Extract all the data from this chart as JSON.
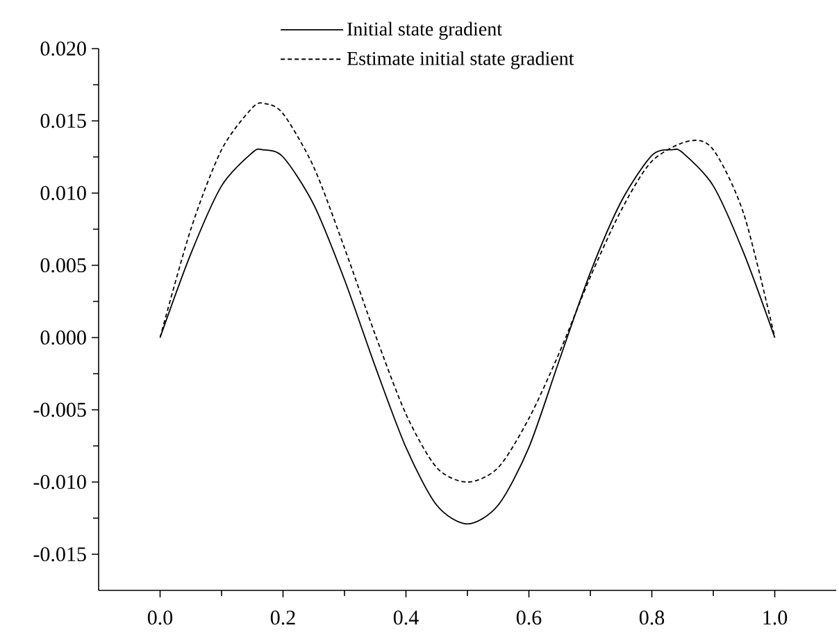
{
  "chart_data": {
    "type": "line",
    "x": [
      0,
      0.05,
      0.1,
      0.15,
      0.167,
      0.2,
      0.25,
      0.3,
      0.35,
      0.4,
      0.45,
      0.5,
      0.55,
      0.6,
      0.65,
      0.7,
      0.75,
      0.8,
      0.833,
      0.85,
      0.9,
      0.95,
      1.0
    ],
    "series": [
      {
        "name": "Initial state gradient",
        "color": "#000000",
        "line_style": "solid",
        "values": [
          0,
          0.0058,
          0.0105,
          0.0128,
          0.013,
          0.0125,
          0.0092,
          0.004,
          -0.002,
          -0.0076,
          -0.0116,
          -0.0129,
          -0.0116,
          -0.0076,
          -0.0015,
          0.0045,
          0.0094,
          0.0126,
          0.013,
          0.0128,
          0.0105,
          0.0058,
          0
        ]
      },
      {
        "name": "Estimate initial state gradient",
        "color": "#000000",
        "line_style": "dashed",
        "x": [
          0,
          0.05,
          0.1,
          0.15,
          0.17,
          0.2,
          0.25,
          0.3,
          0.35,
          0.4,
          0.45,
          0.5,
          0.55,
          0.6,
          0.65,
          0.7,
          0.75,
          0.8,
          0.86,
          0.9,
          0.95,
          1.0
        ],
        "values": [
          0,
          0.0075,
          0.013,
          0.0159,
          0.0162,
          0.0155,
          0.0118,
          0.0062,
          0.0002,
          -0.0053,
          -0.009,
          -0.01,
          -0.009,
          -0.0056,
          -0.001,
          0.0042,
          0.0088,
          0.0122,
          0.0136,
          0.013,
          0.0085,
          0
        ]
      }
    ],
    "xlim": [
      -0.1,
      1.1
    ],
    "ylim": [
      -0.0175,
      0.02
    ],
    "xticks": [
      {
        "value": 0,
        "label": "0.0"
      },
      {
        "value": 0.2,
        "label": "0.2"
      },
      {
        "value": 0.4,
        "label": "0.4"
      },
      {
        "value": 0.6,
        "label": "0.6"
      },
      {
        "value": 0.8,
        "label": "0.8"
      },
      {
        "value": 1.0,
        "label": "1.0"
      }
    ],
    "yticks": [
      {
        "value": -0.015,
        "label": "-0.015"
      },
      {
        "value": -0.01,
        "label": "-0.010"
      },
      {
        "value": -0.005,
        "label": "-0.005"
      },
      {
        "value": 0,
        "label": "0.000"
      },
      {
        "value": 0.005,
        "label": "0.005"
      },
      {
        "value": 0.01,
        "label": "0.010"
      },
      {
        "value": 0.015,
        "label": "0.015"
      },
      {
        "value": 0.02,
        "label": "0.020"
      }
    ],
    "legend": "top",
    "grid": false,
    "marker": "none"
  }
}
